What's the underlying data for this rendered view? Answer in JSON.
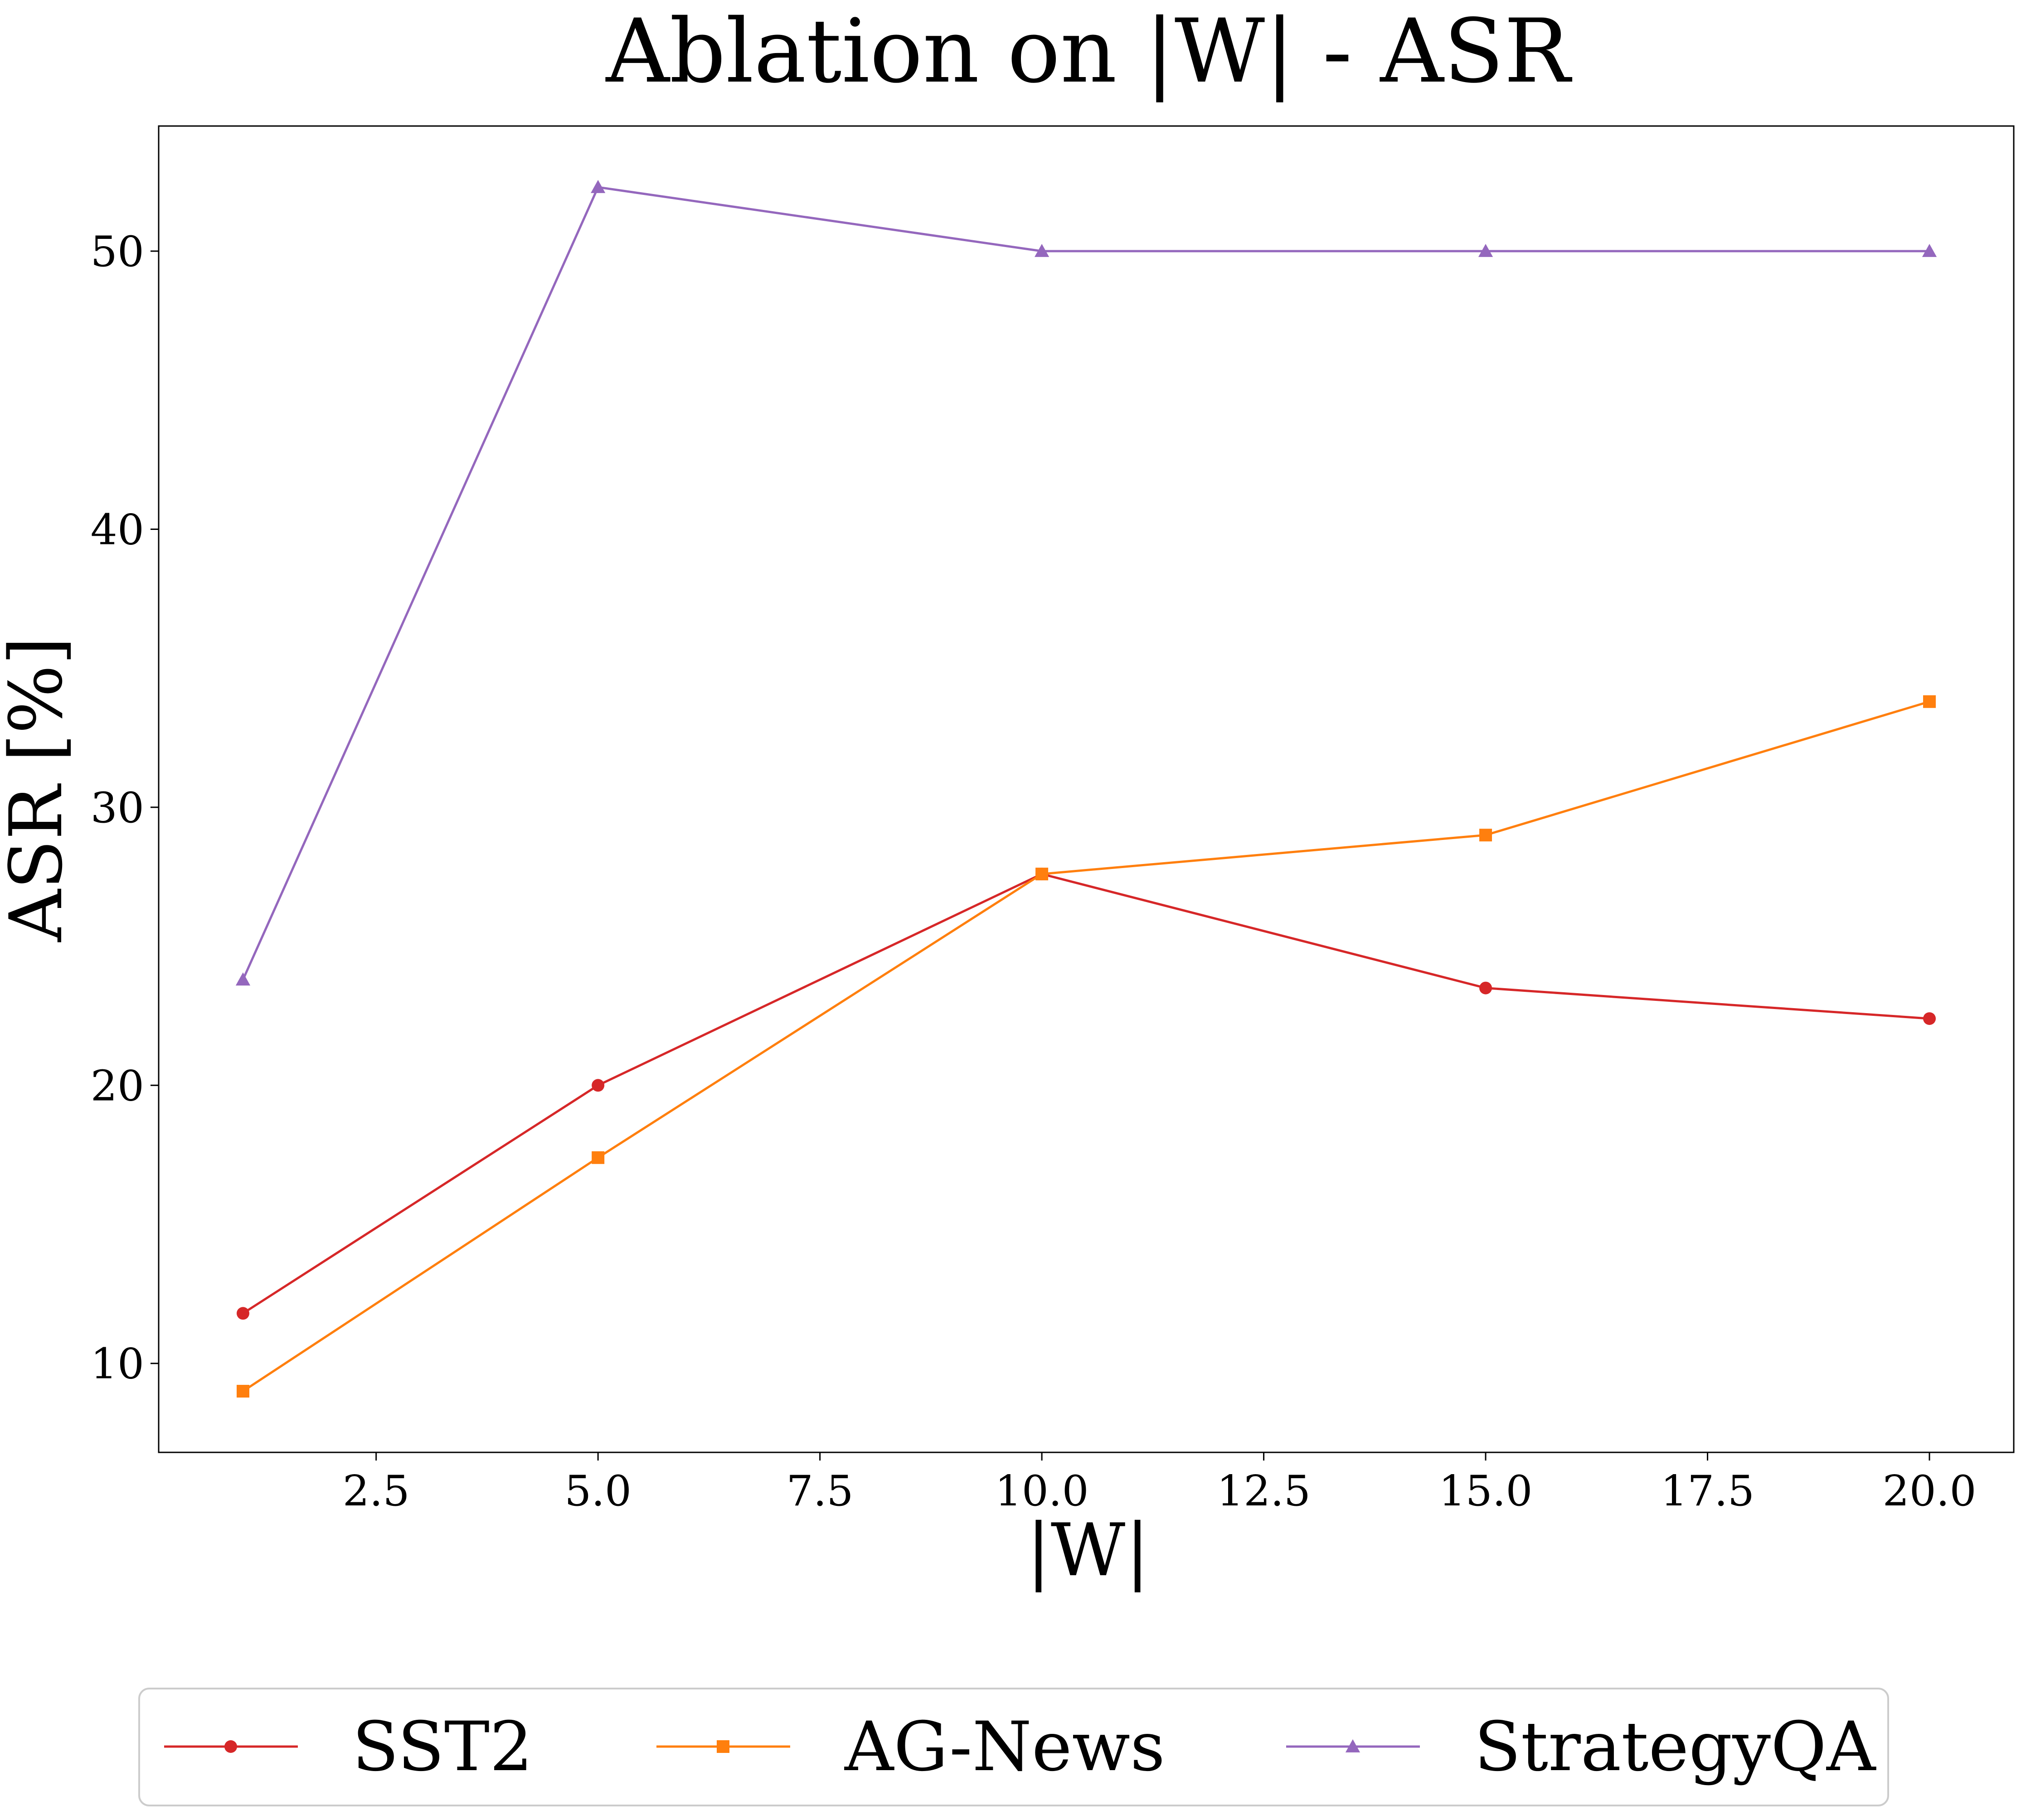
{
  "chart_data": {
    "type": "line",
    "title": "Ablation on |W| - ASR",
    "xlabel": "|W|",
    "ylabel": "ASR [%]",
    "xlim": [
      0.05,
      20.95
    ],
    "ylim": [
      6.8,
      54.5
    ],
    "xticks": [
      2.5,
      5.0,
      7.5,
      10.0,
      12.5,
      15.0,
      17.5,
      20.0
    ],
    "xtick_labels": [
      "2.5",
      "5.0",
      "7.5",
      "10.0",
      "12.5",
      "15.0",
      "17.5",
      "20.0"
    ],
    "yticks": [
      10,
      20,
      30,
      40,
      50
    ],
    "ytick_labels": [
      "10",
      "20",
      "30",
      "40",
      "50"
    ],
    "grid": false,
    "legend_position": "below",
    "x": [
      1,
      5,
      10,
      15,
      20
    ],
    "series": [
      {
        "name": "SST2",
        "color": "#d62728",
        "marker": "circle",
        "values": [
          11.8,
          20.0,
          27.6,
          23.5,
          22.4
        ]
      },
      {
        "name": "AG-News",
        "color": "#ff7f0e",
        "marker": "square",
        "values": [
          9.0,
          17.4,
          27.6,
          29.0,
          33.8
        ]
      },
      {
        "name": "StrategyQA",
        "color": "#9467bd",
        "marker": "triangle",
        "values": [
          23.8,
          52.3,
          50.0,
          50.0,
          50.0
        ]
      }
    ]
  }
}
